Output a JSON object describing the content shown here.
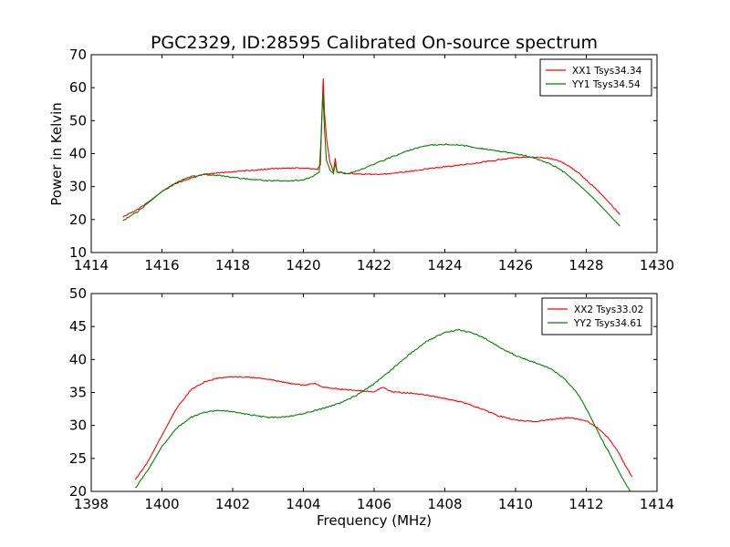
{
  "figure": {
    "title": "PGC2329, ID:28595 Calibrated On-source spectrum",
    "ylabel": "Power in Kelvin",
    "xlabel": "Frequency (MHz)"
  },
  "chart_data": [
    {
      "type": "line",
      "title": "PGC2329, ID:28595 Calibrated On-source spectrum",
      "ylabel": "Power in Kelvin",
      "xlabel": "",
      "xlim": [
        1414,
        1430
      ],
      "ylim": [
        10,
        70
      ],
      "xticks": [
        1414,
        1416,
        1418,
        1420,
        1422,
        1424,
        1426,
        1428,
        1430
      ],
      "yticks": [
        10,
        20,
        30,
        40,
        50,
        60,
        70
      ],
      "grid": false,
      "legend": "top-right",
      "series": [
        {
          "name": "XX1 Tsys34.34",
          "color": "#ff0000",
          "points": [
            [
              1414.9,
              20.8
            ],
            [
              1415.3,
              23.0
            ],
            [
              1415.6,
              25.2
            ],
            [
              1416.0,
              28.5
            ],
            [
              1416.4,
              31.0
            ],
            [
              1416.8,
              32.5
            ],
            [
              1417.2,
              33.7
            ],
            [
              1417.6,
              34.2
            ],
            [
              1418.0,
              34.5
            ],
            [
              1418.5,
              34.9
            ],
            [
              1419.0,
              35.3
            ],
            [
              1419.5,
              35.6
            ],
            [
              1420.0,
              35.6
            ],
            [
              1420.4,
              35.3
            ],
            [
              1420.48,
              36.5
            ],
            [
              1420.52,
              50.0
            ],
            [
              1420.56,
              62.8
            ],
            [
              1420.6,
              52.0
            ],
            [
              1420.66,
              44.0
            ],
            [
              1420.75,
              37.5
            ],
            [
              1420.85,
              34.5
            ],
            [
              1420.9,
              38.6
            ],
            [
              1420.95,
              34.5
            ],
            [
              1421.2,
              34.0
            ],
            [
              1421.6,
              33.8
            ],
            [
              1422.0,
              33.7
            ],
            [
              1422.5,
              34.0
            ],
            [
              1423.0,
              34.6
            ],
            [
              1423.5,
              35.4
            ],
            [
              1424.0,
              36.0
            ],
            [
              1424.5,
              36.6
            ],
            [
              1425.0,
              37.3
            ],
            [
              1425.5,
              38.1
            ],
            [
              1426.0,
              38.8
            ],
            [
              1426.5,
              39.0
            ],
            [
              1426.9,
              38.7
            ],
            [
              1427.2,
              37.9
            ],
            [
              1427.5,
              36.3
            ],
            [
              1427.8,
              34.0
            ],
            [
              1428.1,
              31.0
            ],
            [
              1428.4,
              28.0
            ],
            [
              1428.7,
              24.5
            ],
            [
              1428.95,
              21.5
            ]
          ]
        },
        {
          "name": "YY1 Tsys34.54",
          "color": "#008000",
          "points": [
            [
              1414.9,
              19.7
            ],
            [
              1415.3,
              22.3
            ],
            [
              1415.6,
              25.0
            ],
            [
              1416.0,
              28.5
            ],
            [
              1416.4,
              31.2
            ],
            [
              1416.8,
              33.0
            ],
            [
              1417.2,
              33.6
            ],
            [
              1417.6,
              33.4
            ],
            [
              1418.0,
              32.8
            ],
            [
              1418.5,
              32.2
            ],
            [
              1419.0,
              31.8
            ],
            [
              1419.5,
              31.7
            ],
            [
              1420.0,
              32.0
            ],
            [
              1420.3,
              33.3
            ],
            [
              1420.45,
              34.5
            ],
            [
              1420.5,
              45.0
            ],
            [
              1420.55,
              58.5
            ],
            [
              1420.6,
              47.0
            ],
            [
              1420.65,
              38.0
            ],
            [
              1420.75,
              35.0
            ],
            [
              1420.85,
              34.0
            ],
            [
              1420.9,
              37.0
            ],
            [
              1420.95,
              34.5
            ],
            [
              1421.2,
              33.8
            ],
            [
              1421.6,
              35.0
            ],
            [
              1422.0,
              36.8
            ],
            [
              1422.5,
              39.0
            ],
            [
              1423.0,
              41.0
            ],
            [
              1423.5,
              42.5
            ],
            [
              1424.0,
              42.8
            ],
            [
              1424.5,
              42.5
            ],
            [
              1425.0,
              41.6
            ],
            [
              1425.5,
              40.8
            ],
            [
              1426.0,
              40.0
            ],
            [
              1426.5,
              38.8
            ],
            [
              1427.0,
              36.8
            ],
            [
              1427.4,
              34.2
            ],
            [
              1427.8,
              30.5
            ],
            [
              1428.2,
              26.5
            ],
            [
              1428.6,
              22.0
            ],
            [
              1428.95,
              18.0
            ]
          ]
        }
      ]
    },
    {
      "type": "line",
      "title": "",
      "ylabel": "",
      "xlabel": "Frequency (MHz)",
      "xlim": [
        1398,
        1414
      ],
      "ylim": [
        20,
        50
      ],
      "xticks": [
        1398,
        1400,
        1402,
        1404,
        1406,
        1408,
        1410,
        1412,
        1414
      ],
      "yticks": [
        20,
        25,
        30,
        35,
        40,
        45,
        50
      ],
      "grid": false,
      "legend": "top-right",
      "series": [
        {
          "name": "XX2 Tsys33.02",
          "color": "#ff0000",
          "points": [
            [
              1399.25,
              21.8
            ],
            [
              1399.6,
              24.5
            ],
            [
              1400.0,
              28.5
            ],
            [
              1400.4,
              32.5
            ],
            [
              1400.8,
              35.3
            ],
            [
              1401.2,
              36.6
            ],
            [
              1401.6,
              37.2
            ],
            [
              1402.0,
              37.4
            ],
            [
              1402.5,
              37.3
            ],
            [
              1403.0,
              37.0
            ],
            [
              1403.5,
              36.5
            ],
            [
              1404.0,
              36.1
            ],
            [
              1404.3,
              36.4
            ],
            [
              1404.5,
              35.9
            ],
            [
              1405.0,
              35.5
            ],
            [
              1405.5,
              35.3
            ],
            [
              1406.0,
              35.1
            ],
            [
              1406.25,
              35.8
            ],
            [
              1406.5,
              35.1
            ],
            [
              1407.0,
              34.9
            ],
            [
              1407.5,
              34.6
            ],
            [
              1408.0,
              34.1
            ],
            [
              1408.5,
              33.5
            ],
            [
              1409.0,
              32.6
            ],
            [
              1409.5,
              31.5
            ],
            [
              1410.0,
              30.8
            ],
            [
              1410.5,
              30.6
            ],
            [
              1411.0,
              30.9
            ],
            [
              1411.5,
              31.2
            ],
            [
              1412.0,
              30.7
            ],
            [
              1412.3,
              29.7
            ],
            [
              1412.6,
              28.2
            ],
            [
              1412.9,
              26.0
            ],
            [
              1413.1,
              24.0
            ],
            [
              1413.3,
              22.2
            ]
          ]
        },
        {
          "name": "YY2 Tsys34.61",
          "color": "#008000",
          "points": [
            [
              1399.25,
              20.5
            ],
            [
              1399.6,
              23.2
            ],
            [
              1400.0,
              26.8
            ],
            [
              1400.4,
              29.5
            ],
            [
              1400.8,
              31.2
            ],
            [
              1401.2,
              32.0
            ],
            [
              1401.6,
              32.3
            ],
            [
              1402.0,
              32.1
            ],
            [
              1402.5,
              31.6
            ],
            [
              1403.0,
              31.2
            ],
            [
              1403.5,
              31.3
            ],
            [
              1404.0,
              31.8
            ],
            [
              1404.5,
              32.5
            ],
            [
              1405.0,
              33.3
            ],
            [
              1405.5,
              34.6
            ],
            [
              1406.0,
              36.3
            ],
            [
              1406.5,
              38.5
            ],
            [
              1407.0,
              40.8
            ],
            [
              1407.5,
              42.8
            ],
            [
              1408.0,
              44.1
            ],
            [
              1408.4,
              44.5
            ],
            [
              1408.8,
              44.0
            ],
            [
              1409.2,
              43.0
            ],
            [
              1409.6,
              41.7
            ],
            [
              1410.0,
              40.6
            ],
            [
              1410.5,
              39.6
            ],
            [
              1411.0,
              38.6
            ],
            [
              1411.4,
              37.0
            ],
            [
              1411.8,
              34.5
            ],
            [
              1412.1,
              31.5
            ],
            [
              1412.4,
              28.3
            ],
            [
              1412.7,
              25.3
            ],
            [
              1413.0,
              22.2
            ],
            [
              1413.25,
              20.0
            ]
          ]
        }
      ]
    }
  ]
}
